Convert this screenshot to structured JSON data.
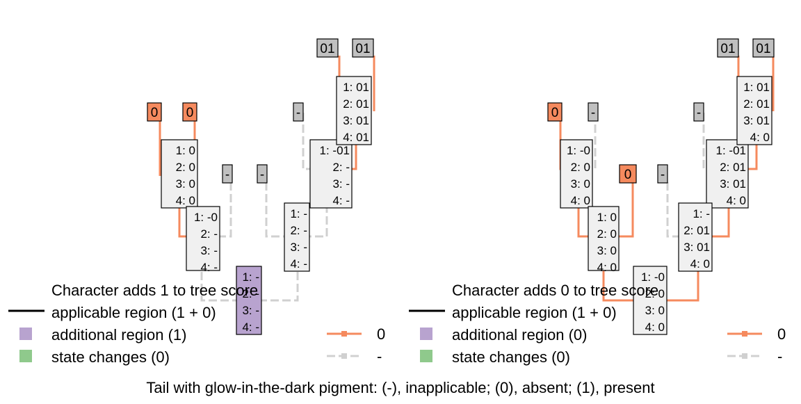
{
  "colors": {
    "absent": "#F58A5E",
    "inapplicable": "#D0D0D0",
    "gap_box": "#C0C0C0",
    "additional_region": "#B8A3CF",
    "state_changes": "#8FC98C",
    "node_fill": "#F0F0F0",
    "applicable_line": "#000000"
  },
  "panels": [
    {
      "id": "left",
      "legend_title": "Character adds 1 to tree score",
      "legend_applicable": "applicable region (1 + 0)",
      "legend_additional": "additional region (1)",
      "legend_changes": "state changes (0)",
      "state_legend": [
        {
          "label": "0",
          "color_key": "absent"
        },
        {
          "label": "-",
          "color_key": "inapplicable"
        }
      ],
      "tips": [
        {
          "label": "0",
          "color_key": "absent"
        },
        {
          "label": "0",
          "color_key": "absent"
        },
        {
          "label": "-",
          "color_key": "gap_box"
        },
        {
          "label": "-",
          "color_key": "gap_box"
        },
        {
          "label": "-",
          "color_key": "gap_box"
        },
        {
          "label": "01",
          "color_key": "gap_box"
        },
        {
          "label": "01",
          "color_key": "gap_box"
        }
      ],
      "nodes": [
        {
          "lines": [
            "1: 0",
            "2: 0",
            "3: 0",
            "4: 0"
          ],
          "fill_key": "node_fill"
        },
        {
          "lines": [
            "1: -0",
            "2: -",
            "3: -",
            "4: -"
          ],
          "fill_key": "node_fill"
        },
        {
          "lines": [
            "1: -01",
            "2: -",
            "3: -",
            "4: -"
          ],
          "fill_key": "node_fill"
        },
        {
          "lines": [
            "1: 01",
            "2: 01",
            "3: 01",
            "4: 01"
          ],
          "fill_key": "node_fill"
        },
        {
          "lines": [
            "1: -",
            "2: -",
            "3: -",
            "4: -"
          ],
          "fill_key": "node_fill"
        },
        {
          "lines": [
            "1: -",
            "2: -",
            "3: -",
            "4: -"
          ],
          "fill_key": "additional_region"
        }
      ]
    },
    {
      "id": "right",
      "legend_title": "Character adds 0 to tree score",
      "legend_applicable": "applicable region (1 + 0)",
      "legend_additional": "additional region (0)",
      "legend_changes": "state changes (0)",
      "state_legend": [
        {
          "label": "0",
          "color_key": "absent"
        },
        {
          "label": "-",
          "color_key": "inapplicable"
        }
      ],
      "tips": [
        {
          "label": "0",
          "color_key": "absent"
        },
        {
          "label": "-",
          "color_key": "gap_box"
        },
        {
          "label": "0",
          "color_key": "absent"
        },
        {
          "label": "-",
          "color_key": "gap_box"
        },
        {
          "label": "-",
          "color_key": "gap_box"
        },
        {
          "label": "01",
          "color_key": "gap_box"
        },
        {
          "label": "01",
          "color_key": "gap_box"
        }
      ],
      "nodes": [
        {
          "lines": [
            "1: -0",
            "2: 0",
            "3: 0",
            "4: 0"
          ],
          "fill_key": "node_fill"
        },
        {
          "lines": [
            "1: 0",
            "2: 0",
            "3: 0",
            "4: 0"
          ],
          "fill_key": "node_fill"
        },
        {
          "lines": [
            "1: -01",
            "2: 01",
            "3: 01",
            "4: 0"
          ],
          "fill_key": "node_fill"
        },
        {
          "lines": [
            "1: 01",
            "2: 01",
            "3: 01",
            "4: 0"
          ],
          "fill_key": "node_fill"
        },
        {
          "lines": [
            "1: -",
            "2: 01",
            "3: 01",
            "4: 0"
          ],
          "fill_key": "node_fill"
        },
        {
          "lines": [
            "1: -0",
            "2: 0",
            "3: 0",
            "4: 0"
          ],
          "fill_key": "node_fill"
        }
      ]
    }
  ],
  "caption": "Tail with glow-in-the-dark pigment: (-), inapplicable; (0), absent; (1), present"
}
